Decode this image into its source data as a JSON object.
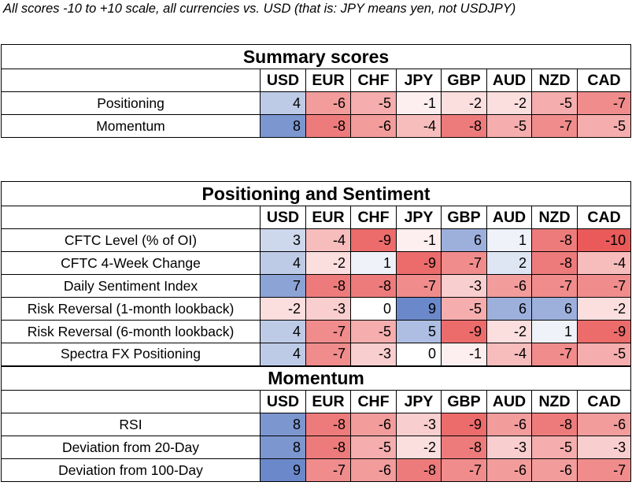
{
  "caption": "All scores -10 to +10 scale, all currencies vs. USD (that is: JPY means yen, not USDJPY)",
  "currencies": [
    "USD",
    "EUR",
    "CHF",
    "JPY",
    "GBP",
    "AUD",
    "NZD",
    "CAD"
  ],
  "colors": {
    "positive_max": "#5b7cc4",
    "negative_max": "#ea5a5a",
    "neutral": "#ffffff",
    "border": "#000000"
  },
  "summary": {
    "title": "Summary scores",
    "rows": [
      {
        "label": "Positioning",
        "values": [
          4,
          -6,
          -5,
          -1,
          -2,
          -2,
          -5,
          -7
        ]
      },
      {
        "label": "Momentum",
        "values": [
          8,
          -8,
          -6,
          -4,
          -8,
          -5,
          -7,
          -5
        ]
      }
    ]
  },
  "positioning": {
    "title": "Positioning and Sentiment",
    "rows": [
      {
        "label": "CFTC Level (% of OI)",
        "values": [
          3,
          -4,
          -9,
          -1,
          6,
          1,
          -8,
          -10
        ]
      },
      {
        "label": "CFTC 4-Week Change",
        "values": [
          4,
          -2,
          1,
          -9,
          -7,
          2,
          -8,
          -4
        ]
      },
      {
        "label": "Daily Sentiment Index",
        "values": [
          7,
          -8,
          -8,
          -7,
          -3,
          -6,
          -7,
          -7
        ]
      },
      {
        "label": "Risk Reversal (1-month lookback)",
        "values": [
          -2,
          -3,
          0,
          9,
          -5,
          6,
          6,
          -2
        ]
      },
      {
        "label": "Risk Reversal (6-month lookback)",
        "values": [
          4,
          -7,
          -5,
          5,
          -9,
          -2,
          1,
          -9
        ]
      },
      {
        "label": "Spectra FX Positioning",
        "values": [
          4,
          -7,
          -3,
          0,
          -1,
          -4,
          -7,
          -5
        ]
      }
    ]
  },
  "momentum": {
    "title": "Momentum",
    "rows": [
      {
        "label": "RSI",
        "values": [
          8,
          -8,
          -6,
          -3,
          -9,
          -6,
          -8,
          -6
        ]
      },
      {
        "label": "Deviation from 20-Day",
        "values": [
          8,
          -8,
          -5,
          -2,
          -8,
          -3,
          -5,
          -3
        ]
      },
      {
        "label": "Deviation from 100-Day",
        "values": [
          9,
          -7,
          -6,
          -8,
          -7,
          -6,
          -6,
          -7
        ]
      }
    ]
  }
}
